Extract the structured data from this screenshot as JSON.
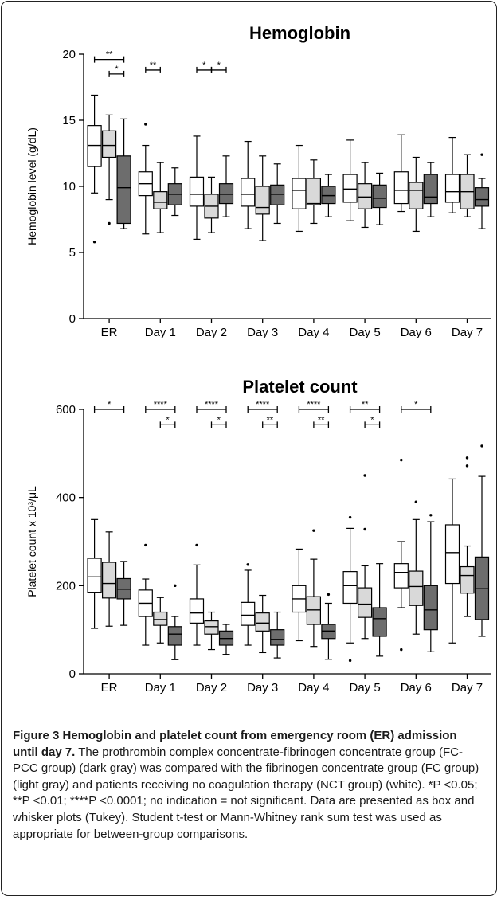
{
  "chart_data": [
    {
      "type": "box",
      "title": "Hemoglobin",
      "ylabel": "Hemoglobin level (g/dL)",
      "ylim": [
        0,
        20
      ],
      "yticks": [
        0,
        5,
        10,
        15,
        20
      ],
      "categories": [
        "ER",
        "Day 1",
        "Day 2",
        "Day 3",
        "Day 4",
        "Day 5",
        "Day 6",
        "Day 7"
      ],
      "series": [
        {
          "fill": "#ffffff",
          "boxes": [
            {
              "wlo": 9.5,
              "q1": 11.5,
              "med": 13.1,
              "q3": 14.6,
              "whi": 16.9,
              "out": [
                5.8
              ]
            },
            {
              "wlo": 6.4,
              "q1": 9.3,
              "med": 10.2,
              "q3": 11.1,
              "whi": 13.1,
              "out": [
                14.7
              ]
            },
            {
              "wlo": 6.0,
              "q1": 8.5,
              "med": 9.4,
              "q3": 10.7,
              "whi": 13.8,
              "out": []
            },
            {
              "wlo": 6.8,
              "q1": 8.5,
              "med": 9.4,
              "q3": 10.6,
              "whi": 13.4,
              "out": []
            },
            {
              "wlo": 6.6,
              "q1": 8.3,
              "med": 9.7,
              "q3": 10.6,
              "whi": 13.1,
              "out": []
            },
            {
              "wlo": 7.4,
              "q1": 8.8,
              "med": 9.8,
              "q3": 10.9,
              "whi": 13.5,
              "out": []
            },
            {
              "wlo": 8.1,
              "q1": 8.7,
              "med": 9.7,
              "q3": 11.1,
              "whi": 13.9,
              "out": []
            },
            {
              "wlo": 8.0,
              "q1": 8.8,
              "med": 9.6,
              "q3": 10.9,
              "whi": 13.7,
              "out": []
            }
          ]
        },
        {
          "fill": "#d9d9d9",
          "boxes": [
            {
              "wlo": 9.0,
              "q1": 12.2,
              "med": 13.1,
              "q3": 14.2,
              "whi": 15.4,
              "out": [
                7.2
              ]
            },
            {
              "wlo": 6.5,
              "q1": 8.3,
              "med": 8.8,
              "q3": 9.6,
              "whi": 11.8,
              "out": []
            },
            {
              "wlo": 6.5,
              "q1": 7.6,
              "med": 8.5,
              "q3": 9.4,
              "whi": 10.7,
              "out": []
            },
            {
              "wlo": 5.9,
              "q1": 7.9,
              "med": 8.4,
              "q3": 10.0,
              "whi": 12.3,
              "out": []
            },
            {
              "wlo": 7.2,
              "q1": 8.6,
              "med": 8.7,
              "q3": 10.6,
              "whi": 12.0,
              "out": []
            },
            {
              "wlo": 6.9,
              "q1": 8.3,
              "med": 9.2,
              "q3": 10.2,
              "whi": 11.8,
              "out": []
            },
            {
              "wlo": 6.6,
              "q1": 8.3,
              "med": 9.7,
              "q3": 10.3,
              "whi": 12.2,
              "out": []
            },
            {
              "wlo": 7.7,
              "q1": 8.3,
              "med": 9.6,
              "q3": 10.9,
              "whi": 12.4,
              "out": []
            }
          ]
        },
        {
          "fill": "#6d6d6d",
          "boxes": [
            {
              "wlo": 6.8,
              "q1": 7.2,
              "med": 9.9,
              "q3": 12.3,
              "whi": 15.1,
              "out": []
            },
            {
              "wlo": 7.8,
              "q1": 8.6,
              "med": 9.4,
              "q3": 10.2,
              "whi": 11.4,
              "out": []
            },
            {
              "wlo": 7.7,
              "q1": 8.7,
              "med": 9.4,
              "q3": 10.2,
              "whi": 12.3,
              "out": []
            },
            {
              "wlo": 7.2,
              "q1": 8.6,
              "med": 9.4,
              "q3": 10.1,
              "whi": 11.7,
              "out": []
            },
            {
              "wlo": 7.7,
              "q1": 8.7,
              "med": 9.3,
              "q3": 10.0,
              "whi": 10.9,
              "out": []
            },
            {
              "wlo": 7.1,
              "q1": 8.4,
              "med": 9.1,
              "q3": 10.1,
              "whi": 11.0,
              "out": []
            },
            {
              "wlo": 7.7,
              "q1": 8.7,
              "med": 9.2,
              "q3": 10.9,
              "whi": 11.8,
              "out": []
            },
            {
              "wlo": 6.8,
              "q1": 8.5,
              "med": 9.0,
              "q3": 9.9,
              "whi": 10.6,
              "out": [
                12.4
              ]
            }
          ]
        }
      ],
      "significance": [
        {
          "cat": 0,
          "from": 0,
          "to": 2,
          "y": 19.6,
          "label": "**"
        },
        {
          "cat": 0,
          "from": 1,
          "to": 2,
          "y": 18.5,
          "label": "*"
        },
        {
          "cat": 1,
          "from": 0,
          "to": 1,
          "y": 18.8,
          "label": "**"
        },
        {
          "cat": 2,
          "from": 0,
          "to": 1,
          "y": 18.8,
          "label": "*"
        },
        {
          "cat": 2,
          "from": 1,
          "to": 2,
          "y": 18.8,
          "label": "*"
        }
      ]
    },
    {
      "type": "box",
      "title": "Platelet count",
      "ylabel": "Platelet count x 10³/μL",
      "ylim": [
        0,
        600
      ],
      "yticks": [
        0,
        200,
        400,
        600
      ],
      "categories": [
        "ER",
        "Day 1",
        "Day 2",
        "Day 3",
        "Day 4",
        "Day 5",
        "Day 6",
        "Day 7"
      ],
      "series": [
        {
          "fill": "#ffffff",
          "boxes": [
            {
              "wlo": 103,
              "q1": 185,
              "med": 220,
              "q3": 262,
              "whi": 350,
              "out": []
            },
            {
              "wlo": 65,
              "q1": 130,
              "med": 160,
              "q3": 190,
              "whi": 215,
              "out": [
                292
              ]
            },
            {
              "wlo": 65,
              "q1": 115,
              "med": 138,
              "q3": 170,
              "whi": 247,
              "out": [
                292
              ]
            },
            {
              "wlo": 65,
              "q1": 110,
              "med": 133,
              "q3": 162,
              "whi": 235,
              "out": [
                248
              ]
            },
            {
              "wlo": 75,
              "q1": 140,
              "med": 170,
              "q3": 200,
              "whi": 283,
              "out": []
            },
            {
              "wlo": 70,
              "q1": 160,
              "med": 200,
              "q3": 232,
              "whi": 330,
              "out": [
                355,
                30
              ]
            },
            {
              "wlo": 150,
              "q1": 195,
              "med": 230,
              "q3": 250,
              "whi": 300,
              "out": [
                485,
                55
              ]
            },
            {
              "wlo": 70,
              "q1": 205,
              "med": 275,
              "q3": 338,
              "whi": 442,
              "out": []
            }
          ]
        },
        {
          "fill": "#d9d9d9",
          "boxes": [
            {
              "wlo": 108,
              "q1": 172,
              "med": 205,
              "q3": 253,
              "whi": 322,
              "out": []
            },
            {
              "wlo": 70,
              "q1": 110,
              "med": 123,
              "q3": 140,
              "whi": 173,
              "out": []
            },
            {
              "wlo": 55,
              "q1": 90,
              "med": 107,
              "q3": 120,
              "whi": 140,
              "out": []
            },
            {
              "wlo": 48,
              "q1": 97,
              "med": 115,
              "q3": 138,
              "whi": 178,
              "out": []
            },
            {
              "wlo": 62,
              "q1": 112,
              "med": 145,
              "q3": 175,
              "whi": 260,
              "out": [
                325
              ]
            },
            {
              "wlo": 80,
              "q1": 128,
              "med": 158,
              "q3": 195,
              "whi": 245,
              "out": [
                450,
                328
              ]
            },
            {
              "wlo": 90,
              "q1": 155,
              "med": 198,
              "q3": 233,
              "whi": 350,
              "out": [
                390
              ]
            },
            {
              "wlo": 130,
              "q1": 183,
              "med": 223,
              "q3": 243,
              "whi": 290,
              "out": [
                490,
                472
              ]
            }
          ]
        },
        {
          "fill": "#6d6d6d",
          "boxes": [
            {
              "wlo": 110,
              "q1": 170,
              "med": 192,
              "q3": 216,
              "whi": 255,
              "out": []
            },
            {
              "wlo": 32,
              "q1": 65,
              "med": 90,
              "q3": 107,
              "whi": 130,
              "out": [
                200
              ]
            },
            {
              "wlo": 44,
              "q1": 65,
              "med": 80,
              "q3": 97,
              "whi": 112,
              "out": []
            },
            {
              "wlo": 36,
              "q1": 65,
              "med": 78,
              "q3": 100,
              "whi": 140,
              "out": []
            },
            {
              "wlo": 33,
              "q1": 80,
              "med": 97,
              "q3": 112,
              "whi": 160,
              "out": [
                180
              ]
            },
            {
              "wlo": 40,
              "q1": 85,
              "med": 125,
              "q3": 150,
              "whi": 250,
              "out": []
            },
            {
              "wlo": 50,
              "q1": 100,
              "med": 145,
              "q3": 200,
              "whi": 345,
              "out": [
                360
              ]
            },
            {
              "wlo": 85,
              "q1": 123,
              "med": 193,
              "q3": 265,
              "whi": 448,
              "out": [
                517
              ]
            }
          ]
        }
      ],
      "significance": [
        {
          "cat": 0,
          "from": 0,
          "to": 2,
          "y": 600,
          "label": "*"
        },
        {
          "cat": 1,
          "from": 0,
          "to": 2,
          "y": 600,
          "label": "****"
        },
        {
          "cat": 1,
          "from": 1,
          "to": 2,
          "y": 565,
          "label": "*"
        },
        {
          "cat": 2,
          "from": 0,
          "to": 2,
          "y": 600,
          "label": "****"
        },
        {
          "cat": 2,
          "from": 1,
          "to": 2,
          "y": 565,
          "label": "*"
        },
        {
          "cat": 3,
          "from": 0,
          "to": 2,
          "y": 600,
          "label": "****"
        },
        {
          "cat": 3,
          "from": 1,
          "to": 2,
          "y": 565,
          "label": "**"
        },
        {
          "cat": 4,
          "from": 0,
          "to": 2,
          "y": 600,
          "label": "****"
        },
        {
          "cat": 4,
          "from": 1,
          "to": 2,
          "y": 565,
          "label": "**"
        },
        {
          "cat": 5,
          "from": 0,
          "to": 2,
          "y": 600,
          "label": "**"
        },
        {
          "cat": 5,
          "from": 1,
          "to": 2,
          "y": 565,
          "label": "*"
        },
        {
          "cat": 6,
          "from": 0,
          "to": 2,
          "y": 600,
          "label": "*"
        }
      ]
    }
  ],
  "caption": {
    "title": "Figure 3 Hemoglobin and platelet count from emergency room (ER) admission until day 7.",
    "body": "The prothrombin complex concentrate-fibrinogen concentrate group (FC-PCC group) (dark gray) was compared with the fibrinogen concentrate group (FC group) (light gray) and patients receiving no coagulation therapy (NCT group) (white). *P <0.05; **P <0.01; ****P <0.0001; no indication = not significant. Data are presented as box and whisker plots (Tukey). Student t-test or Mann-Whitney rank sum test was used as appropriate for between-group comparisons."
  }
}
